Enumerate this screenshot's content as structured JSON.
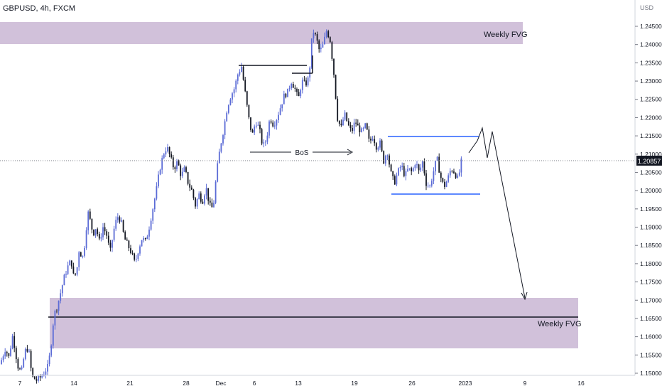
{
  "header": {
    "symbol_line": "GBPUSD, 4h, FXCM",
    "currency": "USD"
  },
  "price_tag": "1.20857",
  "annotations": {
    "fvg_top_label": "Weekly FVG",
    "fvg_bottom_label": "Weekly FVG",
    "bos_label": "BoS"
  },
  "chart_data": {
    "type": "candlestick",
    "symbol": "GBPUSD",
    "timeframe": "4h",
    "source": "FXCM",
    "last_price": 1.20857,
    "ylim": [
      1.15,
      1.2535
    ],
    "y_ticks": [
      "1.24500",
      "1.24000",
      "1.23500",
      "1.23000",
      "1.22500",
      "1.22000",
      "1.21500",
      "1.21000",
      "1.20500",
      "1.20000",
      "1.19500",
      "1.19000",
      "1.18500",
      "1.18000",
      "1.17500",
      "1.17000",
      "1.16500",
      "1.16000",
      "1.15500",
      "1.15000"
    ],
    "x_ticks": [
      "7",
      "14",
      "21",
      "28",
      "Dec",
      "6",
      "13",
      "19",
      "26",
      "2023",
      "9",
      "16"
    ],
    "price_path": [
      [
        0,
        1.1525
      ],
      [
        8,
        1.157
      ],
      [
        12,
        1.154
      ],
      [
        18,
        1.1605
      ],
      [
        22,
        1.1555
      ],
      [
        25,
        1.152
      ],
      [
        30,
        1.15
      ],
      [
        35,
        1.156
      ],
      [
        40,
        1.157
      ],
      [
        45,
        1.149
      ],
      [
        52,
        1.148
      ],
      [
        60,
        1.1495
      ],
      [
        68,
        1.152
      ],
      [
        72,
        1.158
      ],
      [
        76,
        1.166
      ],
      [
        80,
        1.168
      ],
      [
        84,
        1.171
      ],
      [
        90,
        1.176
      ],
      [
        95,
        1.179
      ],
      [
        100,
        1.181
      ],
      [
        104,
        1.176
      ],
      [
        108,
        1.178
      ],
      [
        112,
        1.185
      ],
      [
        115,
        1.181
      ],
      [
        118,
        1.183
      ],
      [
        121,
        1.189
      ],
      [
        124,
        1.194
      ],
      [
        128,
        1.191
      ],
      [
        131,
        1.188
      ],
      [
        135,
        1.19
      ],
      [
        140,
        1.186
      ],
      [
        145,
        1.19
      ],
      [
        150,
        1.188
      ],
      [
        155,
        1.183
      ],
      [
        160,
        1.189
      ],
      [
        165,
        1.193
      ],
      [
        170,
        1.192
      ],
      [
        175,
        1.187
      ],
      [
        180,
        1.185
      ],
      [
        185,
        1.183
      ],
      [
        190,
        1.18
      ],
      [
        195,
        1.184
      ],
      [
        200,
        1.187
      ],
      [
        205,
        1.186
      ],
      [
        210,
        1.19
      ],
      [
        215,
        1.195
      ],
      [
        220,
        1.2
      ],
      [
        225,
        1.206
      ],
      [
        230,
        1.21
      ],
      [
        235,
        1.212
      ],
      [
        240,
        1.209
      ],
      [
        245,
        1.206
      ],
      [
        250,
        1.208
      ],
      [
        255,
        1.204
      ],
      [
        260,
        1.206
      ],
      [
        265,
        1.202
      ],
      [
        270,
        1.2
      ],
      [
        275,
        1.196
      ],
      [
        280,
        1.199
      ],
      [
        285,
        1.197
      ],
      [
        290,
        1.201
      ],
      [
        295,
        1.196
      ],
      [
        300,
        1.195
      ],
      [
        305,
        1.205
      ],
      [
        310,
        1.212
      ],
      [
        315,
        1.217
      ],
      [
        320,
        1.223
      ],
      [
        325,
        1.226
      ],
      [
        330,
        1.228
      ],
      [
        335,
        1.232
      ],
      [
        340,
        1.234
      ],
      [
        345,
        1.227
      ],
      [
        350,
        1.22
      ],
      [
        355,
        1.215
      ],
      [
        360,
        1.219
      ],
      [
        365,
        1.217
      ],
      [
        370,
        1.212
      ],
      [
        375,
        1.214
      ],
      [
        380,
        1.22
      ],
      [
        385,
        1.218
      ],
      [
        390,
        1.22
      ],
      [
        395,
        1.223
      ],
      [
        400,
        1.226
      ],
      [
        405,
        1.227
      ],
      [
        410,
        1.23
      ],
      [
        415,
        1.228
      ],
      [
        420,
        1.225
      ],
      [
        425,
        1.23
      ],
      [
        430,
        1.229
      ],
      [
        435,
        1.231
      ],
      [
        440,
        1.244
      ],
      [
        445,
        1.242
      ],
      [
        450,
        1.238
      ],
      [
        455,
        1.24
      ],
      [
        460,
        1.244
      ],
      [
        465,
        1.241
      ],
      [
        470,
        1.232
      ],
      [
        475,
        1.22
      ],
      [
        480,
        1.217
      ],
      [
        485,
        1.221
      ],
      [
        490,
        1.218
      ],
      [
        495,
        1.216
      ],
      [
        500,
        1.219
      ],
      [
        505,
        1.217
      ],
      [
        510,
        1.216
      ],
      [
        515,
        1.218
      ],
      [
        520,
        1.213
      ],
      [
        525,
        1.215
      ],
      [
        530,
        1.212
      ],
      [
        535,
        1.213
      ],
      [
        540,
        1.208
      ],
      [
        545,
        1.211
      ],
      [
        550,
        1.205
      ],
      [
        555,
        1.202
      ],
      [
        560,
        1.205
      ],
      [
        565,
        1.207
      ],
      [
        570,
        1.204
      ],
      [
        575,
        1.206
      ],
      [
        580,
        1.205
      ],
      [
        585,
        1.208
      ],
      [
        590,
        1.205
      ],
      [
        595,
        1.208
      ],
      [
        600,
        1.202
      ],
      [
        605,
        1.201
      ],
      [
        610,
        1.205
      ],
      [
        615,
        1.209
      ],
      [
        620,
        1.204
      ],
      [
        625,
        1.201
      ],
      [
        630,
        1.203
      ],
      [
        635,
        1.206
      ],
      [
        640,
        1.205
      ],
      [
        645,
        1.203
      ],
      [
        650,
        1.2086
      ]
    ],
    "zones": [
      {
        "label": "Weekly FVG",
        "y_top": 1.2465,
        "y_bottom": 1.2405
      },
      {
        "label": "Weekly FVG",
        "y_top": 1.171,
        "y_bottom": 1.157
      }
    ],
    "horizontal_levels": [
      1.1655
    ],
    "range_box": {
      "top": 1.2148,
      "bottom": 1.1993
    },
    "projection_path": [
      [
        660,
        1.211
      ],
      [
        672,
        1.214
      ],
      [
        679,
        1.2175
      ],
      [
        686,
        1.209
      ],
      [
        693,
        1.215
      ],
      [
        740,
        1.171
      ]
    ]
  }
}
